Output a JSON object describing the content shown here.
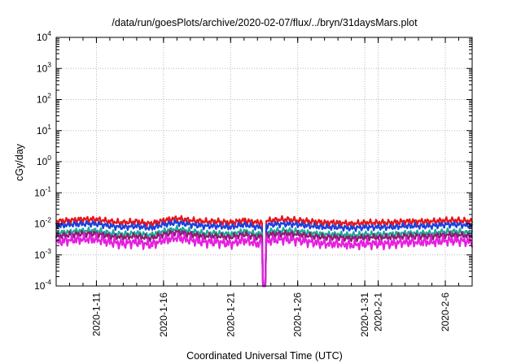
{
  "chart_data": {
    "type": "line",
    "title": "/data/run/goesPlots/archive/2020-02-07/flux/../bryn/31daysMars.plot",
    "xlabel": "Coordinated Universal Time (UTC)",
    "ylabel": "cGy/day",
    "yscale": "log",
    "ylim": [
      0.0001,
      10000
    ],
    "xlim": [
      "2020-01-08",
      "2020-02-08"
    ],
    "y_ticks": [
      {
        "base": "10",
        "exp": "-4",
        "value": 0.0001
      },
      {
        "base": "10",
        "exp": "-3",
        "value": 0.001
      },
      {
        "base": "10",
        "exp": "-2",
        "value": 0.01
      },
      {
        "base": "10",
        "exp": "-1",
        "value": 0.1
      },
      {
        "base": "10",
        "exp": "0",
        "value": 1
      },
      {
        "base": "10",
        "exp": "1",
        "value": 10
      },
      {
        "base": "10",
        "exp": "2",
        "value": 100
      },
      {
        "base": "10",
        "exp": "3",
        "value": 1000
      },
      {
        "base": "10",
        "exp": "4",
        "value": 10000
      }
    ],
    "x_ticks": [
      {
        "label": "2020-1-11",
        "x": "2020-01-11"
      },
      {
        "label": "2020-1-16",
        "x": "2020-01-16"
      },
      {
        "label": "2020-1-21",
        "x": "2020-01-21"
      },
      {
        "label": "2020-1-26",
        "x": "2020-01-26"
      },
      {
        "label": "2020-1-31",
        "x": "2020-01-31"
      },
      {
        "label": "2020-2-1",
        "x": "2020-02-01"
      },
      {
        "label": "2020-2-6",
        "x": "2020-02-06"
      }
    ],
    "grid": true,
    "dropout": {
      "start": "2020-01-23T10:00",
      "end": "2020-01-23T14:00"
    },
    "series": [
      {
        "color": "#e8141a",
        "x": [
          "2020-01-08",
          "2020-01-09",
          "2020-01-10",
          "2020-01-11",
          "2020-01-12",
          "2020-01-13",
          "2020-01-14",
          "2020-01-15",
          "2020-01-16",
          "2020-01-17",
          "2020-01-18",
          "2020-01-19",
          "2020-01-20",
          "2020-01-21",
          "2020-01-22",
          "2020-01-23",
          "2020-01-24",
          "2020-01-25",
          "2020-01-26",
          "2020-01-27",
          "2020-01-28",
          "2020-01-29",
          "2020-01-30",
          "2020-01-31",
          "2020-02-01",
          "2020-02-02",
          "2020-02-03",
          "2020-02-04",
          "2020-02-05",
          "2020-02-06",
          "2020-02-07",
          "2020-02-08"
        ],
        "values": [
          0.012,
          0.013,
          0.014,
          0.014,
          0.012,
          0.011,
          0.012,
          0.01,
          0.013,
          0.015,
          0.013,
          0.012,
          0.012,
          0.011,
          0.013,
          0.011,
          0.013,
          0.014,
          0.013,
          0.012,
          0.011,
          0.011,
          0.01,
          0.011,
          0.011,
          0.011,
          0.012,
          0.012,
          0.012,
          0.013,
          0.013,
          0.012
        ]
      },
      {
        "color": "#1b3fe0",
        "x": [
          "2020-01-08",
          "2020-01-09",
          "2020-01-10",
          "2020-01-11",
          "2020-01-12",
          "2020-01-13",
          "2020-01-14",
          "2020-01-15",
          "2020-01-16",
          "2020-01-17",
          "2020-01-18",
          "2020-01-19",
          "2020-01-20",
          "2020-01-21",
          "2020-01-22",
          "2020-01-23",
          "2020-01-24",
          "2020-01-25",
          "2020-01-26",
          "2020-01-27",
          "2020-01-28",
          "2020-01-29",
          "2020-01-30",
          "2020-01-31",
          "2020-02-01",
          "2020-02-02",
          "2020-02-03",
          "2020-02-04",
          "2020-02-05",
          "2020-02-06",
          "2020-02-07",
          "2020-02-08"
        ],
        "values": [
          0.0085,
          0.0095,
          0.01,
          0.01,
          0.0085,
          0.0078,
          0.0085,
          0.0072,
          0.0095,
          0.011,
          0.0095,
          0.0085,
          0.0085,
          0.0078,
          0.0095,
          0.0078,
          0.0095,
          0.01,
          0.0095,
          0.0085,
          0.0078,
          0.0078,
          0.0072,
          0.0078,
          0.0078,
          0.0078,
          0.0085,
          0.0085,
          0.0085,
          0.0095,
          0.0095,
          0.0085
        ]
      },
      {
        "color": "#1fa89a",
        "x": [
          "2020-01-08",
          "2020-01-09",
          "2020-01-10",
          "2020-01-11",
          "2020-01-12",
          "2020-01-13",
          "2020-01-14",
          "2020-01-15",
          "2020-01-16",
          "2020-01-17",
          "2020-01-18",
          "2020-01-19",
          "2020-01-20",
          "2020-01-21",
          "2020-01-22",
          "2020-01-23",
          "2020-01-24",
          "2020-01-25",
          "2020-01-26",
          "2020-01-27",
          "2020-01-28",
          "2020-01-29",
          "2020-01-30",
          "2020-01-31",
          "2020-02-01",
          "2020-02-02",
          "2020-02-03",
          "2020-02-04",
          "2020-02-05",
          "2020-02-06",
          "2020-02-07",
          "2020-02-08"
        ],
        "values": [
          0.005,
          0.0055,
          0.006,
          0.006,
          0.005,
          0.0046,
          0.005,
          0.0043,
          0.0058,
          0.0068,
          0.0058,
          0.005,
          0.005,
          0.0046,
          0.0058,
          0.0046,
          0.0058,
          0.006,
          0.0058,
          0.005,
          0.0046,
          0.0046,
          0.0043,
          0.0046,
          0.0046,
          0.0046,
          0.005,
          0.005,
          0.005,
          0.0056,
          0.0056,
          0.005
        ]
      },
      {
        "color": "#8a1e6e",
        "x": [
          "2020-01-08",
          "2020-01-09",
          "2020-01-10",
          "2020-01-11",
          "2020-01-12",
          "2020-01-13",
          "2020-01-14",
          "2020-01-15",
          "2020-01-16",
          "2020-01-17",
          "2020-01-18",
          "2020-01-19",
          "2020-01-20",
          "2020-01-21",
          "2020-01-22",
          "2020-01-23",
          "2020-01-24",
          "2020-01-25",
          "2020-01-26",
          "2020-01-27",
          "2020-01-28",
          "2020-01-29",
          "2020-01-30",
          "2020-01-31",
          "2020-02-01",
          "2020-02-02",
          "2020-02-03",
          "2020-02-04",
          "2020-02-05",
          "2020-02-06",
          "2020-02-07",
          "2020-02-08"
        ],
        "values": [
          0.004,
          0.0044,
          0.0048,
          0.0048,
          0.004,
          0.0037,
          0.004,
          0.0034,
          0.0046,
          0.0054,
          0.0046,
          0.004,
          0.004,
          0.0037,
          0.0046,
          0.0037,
          0.0046,
          0.0048,
          0.0046,
          0.004,
          0.0037,
          0.0037,
          0.0034,
          0.0037,
          0.0037,
          0.0037,
          0.004,
          0.004,
          0.004,
          0.0044,
          0.0044,
          0.004
        ]
      },
      {
        "color": "#e61ee0",
        "x": [
          "2020-01-08",
          "2020-01-09",
          "2020-01-10",
          "2020-01-11",
          "2020-01-12",
          "2020-01-13",
          "2020-01-14",
          "2020-01-15",
          "2020-01-16",
          "2020-01-17",
          "2020-01-18",
          "2020-01-19",
          "2020-01-20",
          "2020-01-21",
          "2020-01-22",
          "2020-01-23",
          "2020-01-24",
          "2020-01-25",
          "2020-01-26",
          "2020-01-27",
          "2020-01-28",
          "2020-01-29",
          "2020-01-30",
          "2020-01-31",
          "2020-02-01",
          "2020-02-02",
          "2020-02-03",
          "2020-02-04",
          "2020-02-05",
          "2020-02-06",
          "2020-02-07",
          "2020-02-08"
        ],
        "values": [
          0.0026,
          0.003,
          0.0032,
          0.0032,
          0.0026,
          0.0023,
          0.0026,
          0.0021,
          0.003,
          0.0036,
          0.003,
          0.0026,
          0.0026,
          0.0023,
          0.003,
          0.0023,
          0.003,
          0.0032,
          0.003,
          0.0026,
          0.0023,
          0.0023,
          0.0021,
          0.0023,
          0.0023,
          0.0023,
          0.0026,
          0.0026,
          0.0026,
          0.0029,
          0.0029,
          0.0026
        ]
      }
    ]
  }
}
